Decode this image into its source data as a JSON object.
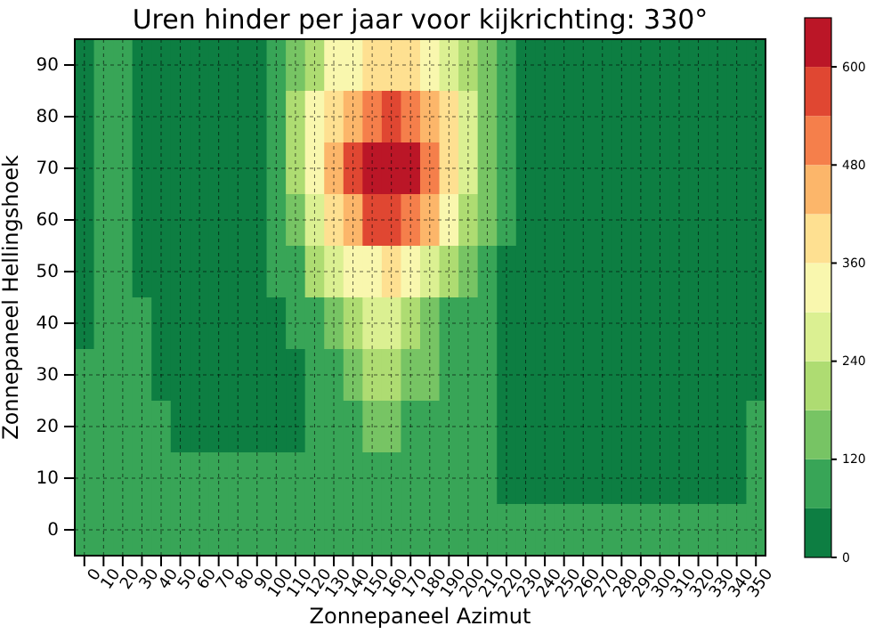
{
  "chart_data": {
    "type": "heatmap",
    "title": "Uren hinder per jaar voor kijkrichting: 330°",
    "xlabel": "Zonnepaneel Azimut",
    "ylabel": "Zonnepaneel Hellingshoek",
    "categories": [
      "0",
      "10",
      "20",
      "30",
      "40",
      "50",
      "60",
      "70",
      "80",
      "90",
      "100",
      "110",
      "120",
      "130",
      "140",
      "150",
      "160",
      "170",
      "180",
      "190",
      "200",
      "210",
      "220",
      "230",
      "240",
      "250",
      "260",
      "270",
      "280",
      "290",
      "300",
      "310",
      "320",
      "330",
      "340",
      "350"
    ],
    "y_categories": [
      "90",
      "80",
      "70",
      "60",
      "50",
      "40",
      "30",
      "20",
      "10",
      "0"
    ],
    "cells": [
      [
        30,
        90,
        90,
        30,
        30,
        30,
        30,
        30,
        30,
        30,
        60,
        150,
        220,
        300,
        340,
        380,
        380,
        360,
        330,
        280,
        220,
        150,
        90,
        30,
        30,
        30,
        30,
        30,
        30,
        30,
        30,
        30,
        30,
        30,
        30,
        30
      ],
      [
        30,
        90,
        90,
        30,
        30,
        30,
        30,
        30,
        30,
        30,
        90,
        180,
        300,
        400,
        470,
        530,
        550,
        520,
        450,
        360,
        270,
        170,
        90,
        30,
        30,
        30,
        30,
        30,
        30,
        30,
        30,
        30,
        30,
        30,
        30,
        30
      ],
      [
        30,
        90,
        90,
        30,
        30,
        30,
        30,
        30,
        30,
        30,
        90,
        200,
        330,
        450,
        560,
        630,
        640,
        600,
        500,
        390,
        280,
        170,
        90,
        30,
        30,
        30,
        30,
        30,
        30,
        30,
        30,
        30,
        30,
        30,
        30,
        30
      ],
      [
        30,
        90,
        90,
        30,
        30,
        30,
        30,
        30,
        30,
        30,
        80,
        150,
        270,
        380,
        470,
        540,
        560,
        520,
        430,
        320,
        220,
        130,
        70,
        30,
        30,
        30,
        30,
        30,
        30,
        30,
        30,
        30,
        30,
        30,
        30,
        30
      ],
      [
        30,
        90,
        90,
        30,
        30,
        30,
        30,
        30,
        30,
        30,
        70,
        110,
        180,
        250,
        310,
        350,
        360,
        320,
        260,
        190,
        130,
        80,
        40,
        30,
        30,
        30,
        30,
        30,
        30,
        30,
        30,
        30,
        30,
        30,
        30,
        30
      ],
      [
        30,
        90,
        90,
        60,
        30,
        30,
        30,
        30,
        30,
        30,
        30,
        80,
        100,
        150,
        200,
        240,
        240,
        200,
        150,
        110,
        90,
        60,
        30,
        30,
        30,
        30,
        30,
        30,
        30,
        30,
        30,
        30,
        30,
        30,
        30,
        30
      ],
      [
        60,
        90,
        90,
        90,
        30,
        30,
        30,
        30,
        30,
        30,
        30,
        30,
        90,
        110,
        150,
        180,
        180,
        150,
        120,
        100,
        90,
        60,
        30,
        30,
        30,
        30,
        30,
        30,
        30,
        30,
        30,
        30,
        30,
        30,
        30,
        30
      ],
      [
        60,
        90,
        90,
        90,
        70,
        30,
        30,
        30,
        30,
        30,
        30,
        30,
        90,
        100,
        110,
        120,
        120,
        110,
        100,
        90,
        90,
        60,
        30,
        30,
        30,
        30,
        30,
        30,
        30,
        30,
        30,
        30,
        30,
        30,
        30,
        60
      ],
      [
        90,
        90,
        90,
        90,
        90,
        90,
        90,
        90,
        90,
        90,
        90,
        90,
        90,
        90,
        90,
        90,
        90,
        90,
        90,
        90,
        90,
        80,
        30,
        30,
        30,
        30,
        30,
        30,
        30,
        30,
        30,
        30,
        30,
        30,
        30,
        60
      ],
      [
        90,
        90,
        90,
        90,
        90,
        90,
        90,
        90,
        90,
        90,
        90,
        90,
        90,
        90,
        90,
        90,
        90,
        90,
        90,
        90,
        90,
        90,
        90,
        90,
        90,
        90,
        90,
        90,
        90,
        90,
        90,
        90,
        90,
        90,
        90,
        90
      ]
    ],
    "clim": [
      0,
      660
    ],
    "cticks": [
      0,
      120,
      240,
      360,
      480,
      600
    ],
    "grid": true
  }
}
